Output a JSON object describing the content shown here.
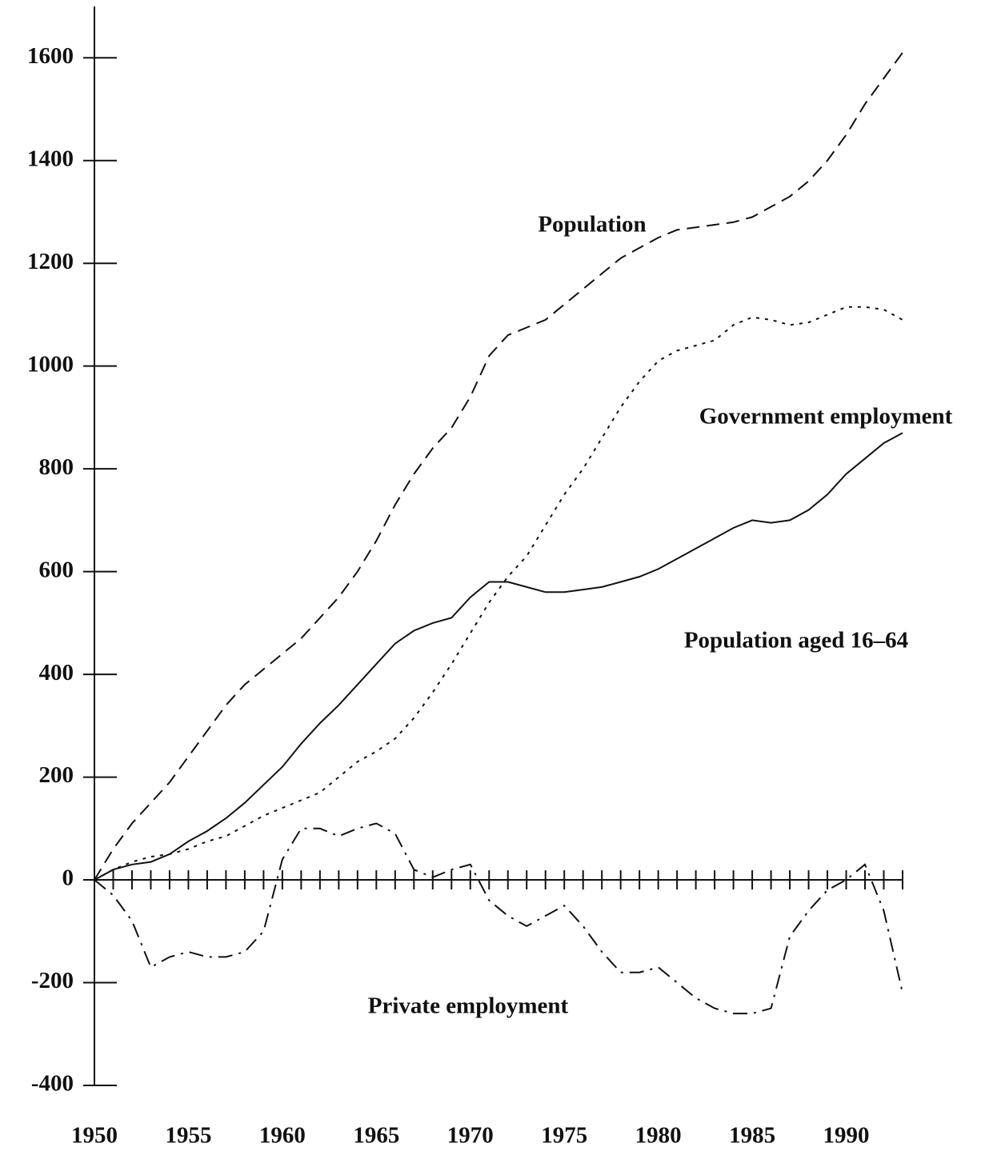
{
  "chart_data": {
    "type": "line",
    "x": [
      1950,
      1951,
      1952,
      1953,
      1954,
      1955,
      1956,
      1957,
      1958,
      1959,
      1960,
      1961,
      1962,
      1963,
      1964,
      1965,
      1966,
      1967,
      1968,
      1969,
      1970,
      1971,
      1972,
      1973,
      1974,
      1975,
      1976,
      1977,
      1978,
      1979,
      1980,
      1981,
      1982,
      1983,
      1984,
      1985,
      1986,
      1987,
      1988,
      1989,
      1990,
      1991,
      1992,
      1993
    ],
    "xlim": [
      1950,
      1993
    ],
    "xticks": [
      1950,
      1955,
      1960,
      1965,
      1970,
      1975,
      1980,
      1985,
      1990
    ],
    "ylim": [
      -400,
      1700
    ],
    "yticks": [
      -400,
      -200,
      0,
      200,
      400,
      600,
      800,
      1000,
      1200,
      1400,
      1600
    ],
    "series": [
      {
        "name": "Population",
        "color": "#111111",
        "style": "dashed",
        "values": [
          0,
          60,
          110,
          150,
          190,
          240,
          290,
          340,
          380,
          410,
          440,
          470,
          510,
          550,
          600,
          660,
          730,
          790,
          840,
          880,
          940,
          1020,
          1060,
          1075,
          1090,
          1120,
          1150,
          1180,
          1210,
          1230,
          1250,
          1265,
          1270,
          1275,
          1280,
          1290,
          1310,
          1330,
          1360,
          1400,
          1450,
          1510,
          1560,
          1610
        ]
      },
      {
        "name": "Government employment",
        "color": "#111111",
        "style": "dotted",
        "values": [
          0,
          20,
          35,
          45,
          50,
          60,
          75,
          85,
          105,
          125,
          140,
          155,
          170,
          200,
          230,
          250,
          275,
          315,
          365,
          420,
          480,
          540,
          590,
          630,
          690,
          750,
          800,
          860,
          920,
          970,
          1010,
          1030,
          1040,
          1050,
          1080,
          1095,
          1090,
          1080,
          1085,
          1100,
          1115,
          1115,
          1110,
          1090
        ]
      },
      {
        "name": "Population aged 16–64",
        "color": "#111111",
        "style": "solid",
        "values": [
          0,
          20,
          30,
          35,
          50,
          75,
          95,
          120,
          150,
          185,
          220,
          265,
          305,
          340,
          380,
          420,
          460,
          485,
          500,
          510,
          550,
          580,
          580,
          570,
          560,
          560,
          565,
          570,
          580,
          590,
          605,
          625,
          645,
          665,
          685,
          700,
          695,
          700,
          720,
          750,
          790,
          820,
          850,
          870
        ]
      },
      {
        "name": "Private employment",
        "color": "#111111",
        "style": "dashdot",
        "values": [
          0,
          -30,
          -80,
          -170,
          -150,
          -140,
          -150,
          -150,
          -140,
          -100,
          40,
          100,
          100,
          85,
          100,
          110,
          90,
          20,
          5,
          20,
          30,
          -40,
          -70,
          -90,
          -70,
          -50,
          -90,
          -140,
          -180,
          -180,
          -170,
          -200,
          -230,
          -250,
          -260,
          -260,
          -250,
          -110,
          -60,
          -20,
          0,
          30,
          -60,
          -220
        ]
      }
    ]
  }
}
